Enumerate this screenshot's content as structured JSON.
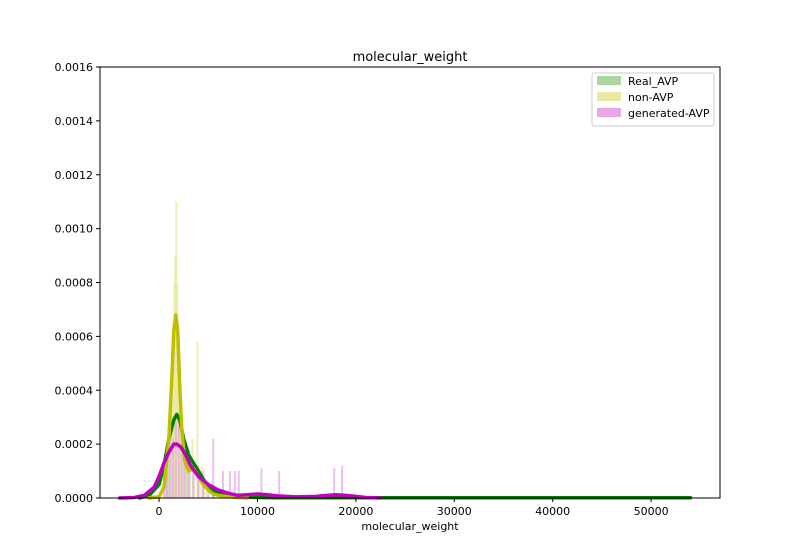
{
  "chart_data": {
    "type": "line",
    "title": "molecular_weight",
    "xlabel": "molecular_weight",
    "ylabel": "",
    "xlim": [
      -6000,
      57000
    ],
    "ylim": [
      0,
      0.0016
    ],
    "x_ticks": [
      0,
      10000,
      20000,
      30000,
      40000,
      50000
    ],
    "x_tick_labels": [
      "0",
      "10000",
      "20000",
      "30000",
      "40000",
      "50000"
    ],
    "y_ticks": [
      0,
      0.0002,
      0.0004,
      0.0006,
      0.0008,
      0.001,
      0.0012,
      0.0014,
      0.0016
    ],
    "y_tick_labels": [
      "0.0000",
      "0.0002",
      "0.0004",
      "0.0006",
      "0.0008",
      "0.0010",
      "0.0012",
      "0.0014",
      "0.0016"
    ],
    "grid": false,
    "legend_position": "top-right",
    "series": [
      {
        "name": "Real_AVP",
        "color": "#008000",
        "hist_color": "#a8d8a0",
        "kde_x": [
          -2000,
          -1000,
          0,
          500,
          1000,
          1500,
          1800,
          2100,
          2500,
          3000,
          3500,
          4000,
          4500,
          5000,
          6000,
          7000,
          8000,
          9000,
          10000,
          12000,
          15000,
          20000,
          30000,
          40000,
          50000,
          54000
        ],
        "kde_y": [
          0,
          1e-05,
          5e-05,
          0.00012,
          0.00022,
          0.00029,
          0.00031,
          0.00029,
          0.00022,
          0.00016,
          0.00013,
          0.0001,
          7e-05,
          4e-05,
          2e-05,
          1e-05,
          5e-06,
          3e-06,
          2e-06,
          1e-06,
          1e-06,
          1e-06,
          1e-06,
          1e-06,
          1e-06,
          1e-06
        ],
        "hist_x": [
          700,
          900,
          1100,
          1300,
          1500,
          1700,
          1900,
          2100,
          2300,
          2500,
          2800,
          3100,
          3500,
          4000,
          4500,
          5000,
          5500
        ],
        "hist_y": [
          0.0001,
          0.00015,
          0.00022,
          0.00026,
          0.00028,
          0.0003,
          0.00032,
          0.00025,
          0.00028,
          0.0002,
          0.00018,
          0.00015,
          0.00012,
          0.0001,
          7e-05,
          5e-05,
          3e-05
        ]
      },
      {
        "name": "non-AVP",
        "color": "#bfbf00",
        "hist_color": "#e8e8a0",
        "kde_x": [
          -1000,
          0,
          500,
          1000,
          1300,
          1500,
          1700,
          1900,
          2100,
          2300,
          2600,
          3000,
          3500,
          4000,
          4500,
          5000,
          5500,
          6000,
          7000,
          8000,
          9000
        ],
        "kde_y": [
          0,
          5e-06,
          4e-05,
          0.00022,
          0.00045,
          0.00062,
          0.00068,
          0.00062,
          0.00042,
          0.00026,
          0.00014,
          0.0001,
          0.00011,
          8e-05,
          5e-05,
          3e-05,
          1.5e-05,
          1e-05,
          5e-06,
          2e-06,
          0
        ],
        "hist_x": [
          1100,
          1300,
          1450,
          1550,
          1650,
          1750,
          1850,
          1950,
          2050,
          2200,
          2400,
          2700,
          3000,
          3400,
          3900,
          4300,
          4800
        ],
        "hist_y": [
          0.0002,
          0.0004,
          0.0006,
          0.0008,
          0.0009,
          0.0011,
          0.0008,
          0.00065,
          0.0005,
          0.0003,
          0.0002,
          0.00015,
          0.0001,
          0.00022,
          0.00058,
          0.00012,
          5e-05
        ]
      },
      {
        "name": "generated-AVP",
        "color": "#c000c0",
        "hist_color": "#e8a8e8",
        "kde_x": [
          -4000,
          -2500,
          -1500,
          -500,
          0,
          500,
          1000,
          1500,
          1800,
          2200,
          2700,
          3200,
          4000,
          5000,
          6000,
          7000,
          8000,
          9000,
          10000,
          11000,
          12000,
          14000,
          16000,
          17000,
          18000,
          19000,
          20000,
          21000,
          22500
        ],
        "kde_y": [
          0,
          2e-06,
          1e-05,
          4e-05,
          8e-05,
          0.00013,
          0.00017,
          0.0002,
          0.0002,
          0.00019,
          0.00016,
          0.00012,
          8e-05,
          5e-05,
          3e-05,
          1.8e-05,
          1e-05,
          1.2e-05,
          1.5e-05,
          1.2e-05,
          8e-06,
          4e-06,
          6e-06,
          1e-05,
          1.2e-05,
          1e-05,
          6e-06,
          2e-06,
          0
        ],
        "hist_x": [
          500,
          800,
          1100,
          1400,
          1700,
          2000,
          2300,
          2600,
          3000,
          3500,
          4000,
          4500,
          5500,
          6500,
          7200,
          7700,
          8100,
          10400,
          12200,
          17800,
          18600
        ],
        "hist_y": [
          8e-05,
          0.00015,
          0.00018,
          0.00022,
          0.0003,
          0.00027,
          0.0002,
          0.00015,
          0.00018,
          0.00013,
          0.00012,
          0.0001,
          0.00022,
          0.0001,
          0.0001,
          0.0001,
          0.0001,
          0.00011,
          0.0001,
          0.00011,
          0.00012
        ]
      }
    ]
  }
}
